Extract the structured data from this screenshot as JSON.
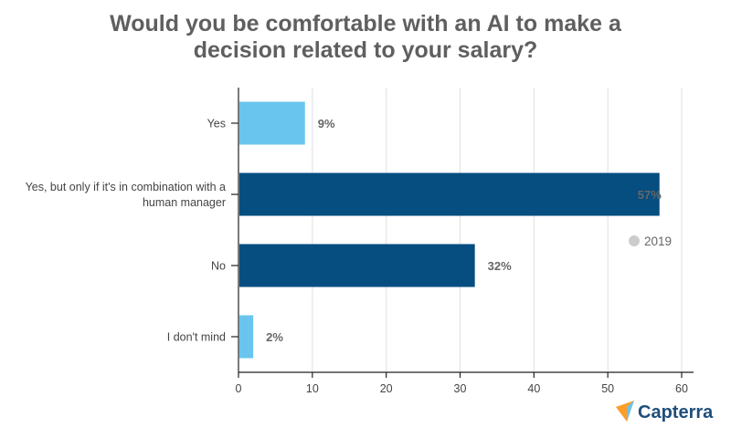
{
  "chart_data": {
    "type": "bar",
    "orientation": "horizontal",
    "title": "Would you be comfortable with an AI to make a decision related to your salary?",
    "title_lines": [
      "Would you be comfortable with an AI to make a",
      "decision related to your salary?"
    ],
    "categories": [
      "Yes",
      "Yes, but only if it's in combination with a human manager",
      "No",
      "I don't mind"
    ],
    "category_lines": [
      [
        "Yes"
      ],
      [
        "Yes, but only if it's in combination with a",
        "human manager"
      ],
      [
        "No"
      ],
      [
        "I don't mind"
      ]
    ],
    "values": [
      9,
      57,
      32,
      2
    ],
    "data_labels": [
      "9%",
      "57%",
      "32%",
      "2%"
    ],
    "bar_colors": [
      "#6ac5ee",
      "#064d80",
      "#064d80",
      "#6ac5ee"
    ],
    "xlim": [
      0,
      60
    ],
    "xticks": [
      0,
      10,
      20,
      30,
      40,
      50,
      60
    ],
    "grid": true,
    "legend": {
      "entries": [
        {
          "name": "2019",
          "color": "#cccccc"
        }
      ],
      "placement": "right"
    },
    "xlabel": "",
    "ylabel": ""
  },
  "brand": {
    "name": "Capterra"
  }
}
